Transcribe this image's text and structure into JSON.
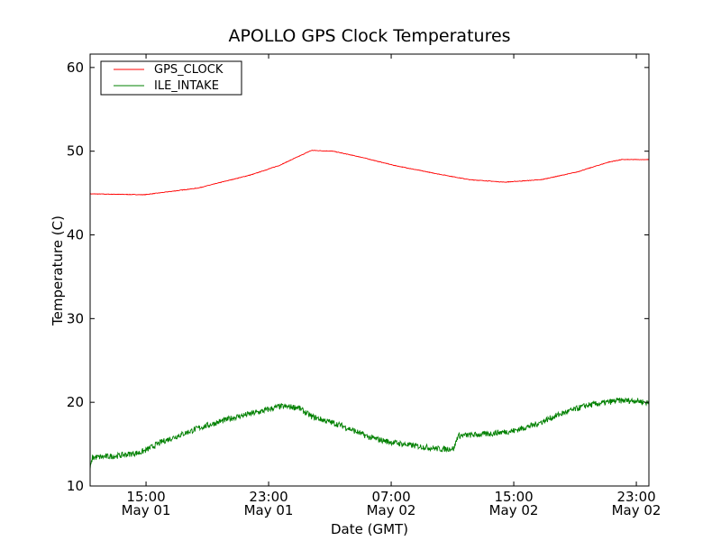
{
  "chart_data": {
    "type": "line",
    "title": "APOLLO GPS Clock Temperatures",
    "xlabel": "Date (GMT)",
    "ylabel": "Temperature (C)",
    "x_units": "hours since May 01 00:00 GMT",
    "xlim": [
      11.35,
      47.82
    ],
    "ylim": [
      10,
      61.6
    ],
    "yticks": [
      10,
      20,
      30,
      40,
      50,
      60
    ],
    "xticks": [
      {
        "value": 15,
        "time": "15:00",
        "date": "May 01"
      },
      {
        "value": 23,
        "time": "23:00",
        "date": "May 01"
      },
      {
        "value": 31,
        "time": "07:00",
        "date": "May 02"
      },
      {
        "value": 39,
        "time": "15:00",
        "date": "May 02"
      },
      {
        "value": 47,
        "time": "23:00",
        "date": "May 02"
      }
    ],
    "grid": false,
    "legend_position": "top-left",
    "series": [
      {
        "name": "GPS_CLOCK",
        "color": "#ff0000",
        "noise_amplitude": 0.03,
        "x": [
          11.35,
          14.9,
          18.4,
          21.9,
          23.7,
          25.8,
          27.2,
          29.0,
          31.2,
          33.7,
          36.1,
          38.4,
          40.8,
          43.1,
          45.2,
          46.05,
          47.82
        ],
        "y": [
          44.9,
          44.8,
          45.6,
          47.2,
          48.3,
          50.1,
          50.0,
          49.3,
          48.3,
          47.4,
          46.6,
          46.3,
          46.6,
          47.5,
          48.7,
          49.0,
          49.0
        ]
      },
      {
        "name": "ILE_INTAKE",
        "color": "#008000",
        "noise_amplitude": 0.35,
        "x": [
          11.35,
          11.5,
          13.1,
          14.6,
          14.9,
          16.05,
          18.4,
          20.75,
          22.5,
          23.7,
          24.9,
          25.8,
          27.8,
          29.6,
          30.8,
          32.5,
          34.3,
          35.1,
          35.35,
          37.2,
          39.0,
          40.5,
          41.9,
          43.7,
          45.8,
          47.0,
          47.82
        ],
        "y": [
          12.0,
          13.4,
          13.6,
          14.0,
          14.2,
          15.3,
          16.9,
          18.2,
          18.9,
          19.5,
          19.4,
          18.3,
          17.2,
          15.8,
          15.3,
          14.8,
          14.4,
          14.5,
          16.0,
          16.2,
          16.6,
          17.4,
          18.5,
          19.6,
          20.2,
          20.2,
          19.9
        ]
      }
    ]
  }
}
